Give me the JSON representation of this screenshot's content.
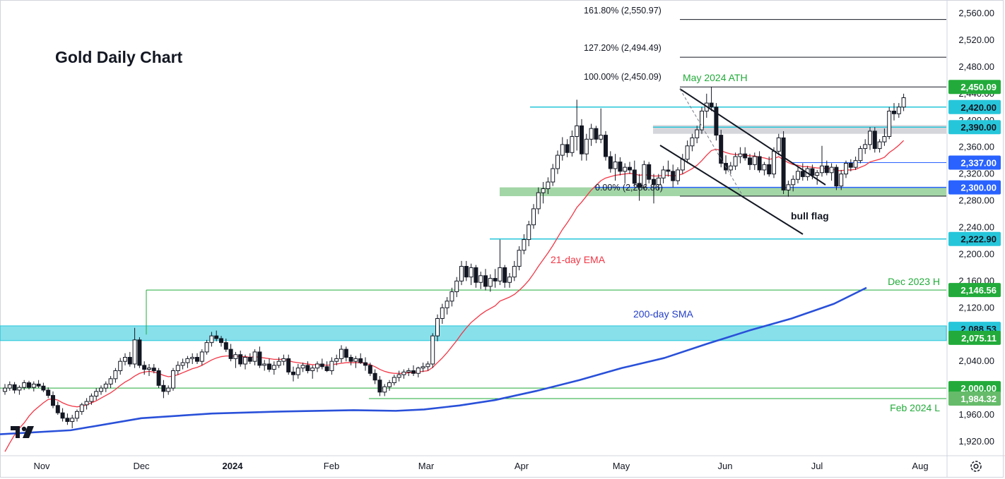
{
  "chart_data": {
    "type": "candlestick",
    "title": "Gold Daily Chart",
    "x_ticks": [
      "Nov",
      "Dec",
      "2024",
      "Feb",
      "Mar",
      "Apr",
      "May",
      "Jun",
      "Jul",
      "Aug"
    ],
    "y_ticks": [
      "2,560.00",
      "2,520.00",
      "2,480.00",
      "2,440.00",
      "2,400.00",
      "2,360.00",
      "2,320.00",
      "2,280.00",
      "2,240.00",
      "2,200.00",
      "2,160.00",
      "2,120.00",
      "2,080.00",
      "2,040.00",
      "2,000.00",
      "1,960.00",
      "1,920.00"
    ],
    "ylim": [
      1897,
      2581
    ],
    "price_tags": [
      {
        "label": "2,450.09",
        "value": 2450.09,
        "color": "#22ab3a",
        "text_color": "#ffffff"
      },
      {
        "label": "2,420.00",
        "value": 2420.0,
        "color": "#26c6da",
        "text_color": "#131722"
      },
      {
        "label": "2,390.00",
        "value": 2390.0,
        "color": "#26c6da",
        "text_color": "#131722"
      },
      {
        "label": "2,337.00",
        "value": 2337.0,
        "color": "#2962ff",
        "text_color": "#ffffff"
      },
      {
        "label": "2,300.00",
        "value": 2300.0,
        "color": "#2962ff",
        "text_color": "#ffffff"
      },
      {
        "label": "2,222.90",
        "value": 2222.9,
        "color": "#26c6da",
        "text_color": "#131722"
      },
      {
        "label": "2,146.56",
        "value": 2146.56,
        "color": "#22ab3a",
        "text_color": "#ffffff"
      },
      {
        "label": "2,088.53",
        "value": 2088.53,
        "color": "#26c6da",
        "text_color": "#131722"
      },
      {
        "label": "2,075.11",
        "value": 2075.11,
        "color": "#22ab3a",
        "text_color": "#ffffff"
      },
      {
        "label": "2,000.00",
        "value": 2000.0,
        "color": "#22ab3a",
        "text_color": "#ffffff"
      },
      {
        "label": "1,984.32",
        "value": 1984.32,
        "color": "#66bb6a",
        "text_color": "#ffffff"
      }
    ],
    "fib_levels": [
      {
        "label": "161.80% (2,550.97)",
        "value": 2550.97
      },
      {
        "label": "127.20% (2,494.49)",
        "value": 2494.49
      },
      {
        "label": "100.00% (2,450.09)",
        "value": 2450.09
      },
      {
        "label": "0.00% (2,286.86)",
        "value": 2286.86
      }
    ],
    "annotations": {
      "ath": "May 2024 ATH",
      "bull_flag": "bull flag",
      "ema": "21-day EMA",
      "sma": "200-day SMA",
      "dec_high": "Dec 2023 H",
      "feb_low": "Feb 2024 L"
    },
    "candles": [
      [
        1995,
        2006,
        1990,
        2000
      ],
      [
        2000,
        2010,
        1996,
        2005
      ],
      [
        2005,
        2009,
        1992,
        1997
      ],
      [
        1997,
        2004,
        1990,
        2001
      ],
      [
        2001,
        2012,
        1997,
        2008
      ],
      [
        2008,
        2011,
        1998,
        2001
      ],
      [
        2001,
        2010,
        1995,
        2006
      ],
      [
        2006,
        2012,
        2000,
        2003
      ],
      [
        2003,
        2008,
        1994,
        1997
      ],
      [
        1997,
        2001,
        1985,
        1989
      ],
      [
        1989,
        1995,
        1970,
        1974
      ],
      [
        1974,
        1980,
        1960,
        1963
      ],
      [
        1963,
        1970,
        1950,
        1955
      ],
      [
        1955,
        1962,
        1945,
        1950
      ],
      [
        1950,
        1960,
        1940,
        1955
      ],
      [
        1955,
        1968,
        1950,
        1965
      ],
      [
        1965,
        1978,
        1960,
        1975
      ],
      [
        1975,
        1985,
        1968,
        1980
      ],
      [
        1980,
        1992,
        1975,
        1988
      ],
      [
        1988,
        2000,
        1982,
        1995
      ],
      [
        1995,
        2004,
        1990,
        2000
      ],
      [
        2000,
        2010,
        1994,
        2006
      ],
      [
        2006,
        2018,
        2000,
        2014
      ],
      [
        2014,
        2030,
        2008,
        2026
      ],
      [
        2026,
        2045,
        2020,
        2040
      ],
      [
        2040,
        2052,
        2034,
        2046
      ],
      [
        2046,
        2054,
        2032,
        2036
      ],
      [
        2036,
        2090,
        2030,
        2072
      ],
      [
        2072,
        2076,
        2030,
        2034
      ],
      [
        2034,
        2040,
        2020,
        2028
      ],
      [
        2028,
        2036,
        2018,
        2030
      ],
      [
        2030,
        2036,
        2022,
        2026
      ],
      [
        2026,
        2030,
        2000,
        2004
      ],
      [
        2004,
        2012,
        1985,
        1995
      ],
      [
        1995,
        2004,
        1990,
        2000
      ],
      [
        2000,
        2030,
        1996,
        2026
      ],
      [
        2026,
        2040,
        2020,
        2034
      ],
      [
        2034,
        2044,
        2028,
        2038
      ],
      [
        2038,
        2048,
        2030,
        2044
      ],
      [
        2044,
        2052,
        2036,
        2046
      ],
      [
        2046,
        2052,
        2036,
        2040
      ],
      [
        2040,
        2058,
        2034,
        2054
      ],
      [
        2054,
        2072,
        2050,
        2068
      ],
      [
        2068,
        2084,
        2062,
        2078
      ],
      [
        2078,
        2086,
        2070,
        2074
      ],
      [
        2074,
        2078,
        2062,
        2068
      ],
      [
        2068,
        2074,
        2054,
        2058
      ],
      [
        2058,
        2066,
        2040,
        2044
      ],
      [
        2044,
        2054,
        2030,
        2050
      ],
      [
        2050,
        2056,
        2032,
        2036
      ],
      [
        2036,
        2050,
        2028,
        2046
      ],
      [
        2046,
        2052,
        2036,
        2040
      ],
      [
        2040,
        2058,
        2034,
        2054
      ],
      [
        2054,
        2062,
        2030,
        2034
      ],
      [
        2034,
        2042,
        2026,
        2036
      ],
      [
        2036,
        2044,
        2024,
        2028
      ],
      [
        2028,
        2040,
        2020,
        2034
      ],
      [
        2034,
        2046,
        2030,
        2040
      ],
      [
        2040,
        2050,
        2034,
        2044
      ],
      [
        2044,
        2050,
        2020,
        2024
      ],
      [
        2024,
        2032,
        2010,
        2020
      ],
      [
        2020,
        2036,
        2014,
        2030
      ],
      [
        2030,
        2038,
        2024,
        2034
      ],
      [
        2034,
        2040,
        2022,
        2026
      ],
      [
        2026,
        2034,
        2014,
        2030
      ],
      [
        2030,
        2040,
        2024,
        2036
      ],
      [
        2036,
        2044,
        2028,
        2032
      ],
      [
        2032,
        2040,
        2024,
        2026
      ],
      [
        2026,
        2046,
        2020,
        2040
      ],
      [
        2040,
        2050,
        2034,
        2044
      ],
      [
        2044,
        2064,
        2038,
        2058
      ],
      [
        2058,
        2062,
        2040,
        2046
      ],
      [
        2046,
        2050,
        2034,
        2040
      ],
      [
        2040,
        2048,
        2030,
        2044
      ],
      [
        2044,
        2052,
        2036,
        2038
      ],
      [
        2038,
        2046,
        2026,
        2034
      ],
      [
        2034,
        2038,
        2018,
        2022
      ],
      [
        2022,
        2028,
        2006,
        2012
      ],
      [
        2012,
        2018,
        1988,
        1994
      ],
      [
        1994,
        2006,
        1988,
        2002
      ],
      [
        2002,
        2012,
        1996,
        2008
      ],
      [
        2008,
        2020,
        2004,
        2016
      ],
      [
        2016,
        2026,
        2010,
        2020
      ],
      [
        2020,
        2028,
        2014,
        2024
      ],
      [
        2024,
        2030,
        2018,
        2026
      ],
      [
        2026,
        2034,
        2018,
        2022
      ],
      [
        2022,
        2032,
        2016,
        2030
      ],
      [
        2030,
        2038,
        2024,
        2032
      ],
      [
        2032,
        2040,
        2026,
        2036
      ],
      [
        2036,
        2082,
        2030,
        2078
      ],
      [
        2078,
        2110,
        2070,
        2104
      ],
      [
        2104,
        2126,
        2096,
        2120
      ],
      [
        2120,
        2136,
        2110,
        2130
      ],
      [
        2130,
        2150,
        2122,
        2144
      ],
      [
        2144,
        2166,
        2136,
        2160
      ],
      [
        2160,
        2190,
        2154,
        2182
      ],
      [
        2182,
        2190,
        2160,
        2166
      ],
      [
        2166,
        2186,
        2154,
        2180
      ],
      [
        2180,
        2184,
        2150,
        2158
      ],
      [
        2158,
        2174,
        2148,
        2168
      ],
      [
        2168,
        2178,
        2146,
        2152
      ],
      [
        2152,
        2170,
        2144,
        2164
      ],
      [
        2164,
        2178,
        2150,
        2160
      ],
      [
        2160,
        2222,
        2154,
        2180
      ],
      [
        2180,
        2184,
        2150,
        2158
      ],
      [
        2158,
        2172,
        2150,
        2166
      ],
      [
        2166,
        2190,
        2160,
        2182
      ],
      [
        2182,
        2212,
        2176,
        2206
      ],
      [
        2206,
        2230,
        2200,
        2222
      ],
      [
        2222,
        2250,
        2212,
        2244
      ],
      [
        2244,
        2275,
        2238,
        2268
      ],
      [
        2268,
        2300,
        2260,
        2292
      ],
      [
        2292,
        2308,
        2276,
        2298
      ],
      [
        2298,
        2315,
        2290,
        2308
      ],
      [
        2308,
        2335,
        2302,
        2328
      ],
      [
        2328,
        2355,
        2320,
        2348
      ],
      [
        2348,
        2375,
        2340,
        2364
      ],
      [
        2364,
        2372,
        2345,
        2352
      ],
      [
        2352,
        2385,
        2346,
        2376
      ],
      [
        2376,
        2431,
        2355,
        2392
      ],
      [
        2392,
        2402,
        2340,
        2350
      ],
      [
        2350,
        2380,
        2340,
        2372
      ],
      [
        2372,
        2395,
        2362,
        2388
      ],
      [
        2388,
        2392,
        2366,
        2372
      ],
      [
        2372,
        2418,
        2366,
        2378
      ],
      [
        2378,
        2384,
        2340,
        2346
      ],
      [
        2346,
        2354,
        2322,
        2328
      ],
      [
        2328,
        2350,
        2310,
        2338
      ],
      [
        2338,
        2345,
        2318,
        2324
      ],
      [
        2324,
        2336,
        2306,
        2330
      ],
      [
        2330,
        2338,
        2320,
        2326
      ],
      [
        2326,
        2340,
        2300,
        2306
      ],
      [
        2306,
        2320,
        2280,
        2300
      ],
      [
        2300,
        2340,
        2296,
        2334
      ],
      [
        2334,
        2338,
        2306,
        2312
      ],
      [
        2312,
        2320,
        2276,
        2304
      ],
      [
        2304,
        2320,
        2296,
        2314
      ],
      [
        2314,
        2332,
        2306,
        2326
      ],
      [
        2326,
        2340,
        2316,
        2324
      ],
      [
        2324,
        2334,
        2300,
        2310
      ],
      [
        2310,
        2330,
        2304,
        2326
      ],
      [
        2326,
        2350,
        2320,
        2342
      ],
      [
        2342,
        2370,
        2336,
        2362
      ],
      [
        2362,
        2380,
        2354,
        2374
      ],
      [
        2374,
        2392,
        2366,
        2386
      ],
      [
        2386,
        2420,
        2380,
        2414
      ],
      [
        2414,
        2440,
        2404,
        2426
      ],
      [
        2426,
        2450,
        2414,
        2420
      ],
      [
        2420,
        2426,
        2370,
        2378
      ],
      [
        2378,
        2386,
        2330,
        2336
      ],
      [
        2336,
        2348,
        2320,
        2326
      ],
      [
        2326,
        2338,
        2320,
        2332
      ],
      [
        2332,
        2352,
        2326,
        2346
      ],
      [
        2346,
        2360,
        2336,
        2350
      ],
      [
        2350,
        2360,
        2340,
        2344
      ],
      [
        2344,
        2350,
        2326,
        2334
      ],
      [
        2334,
        2352,
        2326,
        2346
      ],
      [
        2346,
        2354,
        2322,
        2326
      ],
      [
        2326,
        2338,
        2318,
        2334
      ],
      [
        2334,
        2346,
        2316,
        2320
      ],
      [
        2320,
        2360,
        2314,
        2354
      ],
      [
        2354,
        2380,
        2348,
        2374
      ],
      [
        2374,
        2384,
        2290,
        2296
      ],
      [
        2296,
        2310,
        2286,
        2304
      ],
      [
        2304,
        2318,
        2294,
        2312
      ],
      [
        2312,
        2330,
        2306,
        2324
      ],
      [
        2324,
        2336,
        2310,
        2316
      ],
      [
        2316,
        2332,
        2310,
        2328
      ],
      [
        2328,
        2334,
        2312,
        2318
      ],
      [
        2318,
        2326,
        2304,
        2322
      ],
      [
        2322,
        2362,
        2316,
        2332
      ],
      [
        2332,
        2340,
        2318,
        2322
      ],
      [
        2322,
        2336,
        2310,
        2330
      ],
      [
        2330,
        2334,
        2296,
        2302
      ],
      [
        2302,
        2326,
        2296,
        2320
      ],
      [
        2320,
        2340,
        2314,
        2336
      ],
      [
        2336,
        2342,
        2324,
        2330
      ],
      [
        2330,
        2346,
        2326,
        2340
      ],
      [
        2340,
        2362,
        2336,
        2358
      ],
      [
        2358,
        2372,
        2350,
        2364
      ],
      [
        2364,
        2390,
        2356,
        2384
      ],
      [
        2384,
        2390,
        2352,
        2358
      ],
      [
        2358,
        2372,
        2352,
        2368
      ],
      [
        2368,
        2388,
        2362,
        2376
      ],
      [
        2376,
        2420,
        2372,
        2414
      ],
      [
        2414,
        2426,
        2400,
        2410
      ],
      [
        2410,
        2426,
        2404,
        2420
      ],
      [
        2420,
        2440,
        2414,
        2434
      ]
    ],
    "ema_21": [
      1905,
      1918,
      1930,
      1940,
      1948,
      1958,
      1966,
      1972,
      1978,
      1983,
      1984,
      1982,
      1978,
      1975,
      1973,
      1972,
      1973,
      1975,
      1978,
      1981,
      1985,
      1989,
      1993,
      1998,
      2004,
      2009,
      2013,
      2018,
      2022,
      2024,
      2025,
      2024,
      2022,
      2019,
      2017,
      2018,
      2020,
      2023,
      2026,
      2029,
      2031,
      2034,
      2038,
      2042,
      2045,
      2047,
      2048,
      2048,
      2048,
      2047,
      2047,
      2046,
      2047,
      2046,
      2045,
      2044,
      2043,
      2043,
      2043,
      2041,
      2039,
      2038,
      2037,
      2036,
      2035,
      2035,
      2035,
      2034,
      2035,
      2036,
      2037,
      2038,
      2038,
      2038,
      2038,
      2037,
      2035,
      2032,
      2028,
      2025,
      2023,
      2022,
      2022,
      2022,
      2023,
      2023,
      2024,
      2025,
      2026,
      2031,
      2038,
      2045,
      2053,
      2062,
      2071,
      2081,
      2090,
      2098,
      2104,
      2110,
      2115,
      2119,
      2123,
      2130,
      2133,
      2136,
      2140,
      2146,
      2153,
      2161,
      2171,
      2182,
      2192,
      2202,
      2213,
      2225,
      2237,
      2247,
      2258,
      2270,
      2278,
      2287,
      2296,
      2303,
      2310,
      2314,
      2316,
      2318,
      2319,
      2320,
      2321,
      2320,
      2318,
      2319,
      2318,
      2317,
      2317,
      2318,
      2318,
      2317,
      2318,
      2320,
      2324,
      2328,
      2333,
      2340,
      2348,
      2355,
      2357,
      2355,
      2352,
      2350,
      2349,
      2349,
      2348,
      2347,
      2347,
      2345,
      2344,
      2342,
      2343,
      2346,
      2341,
      2337,
      2334,
      2333,
      2331,
      2331,
      2330,
      2329,
      2329,
      2328,
      2328,
      2325,
      2325,
      2326,
      2326,
      2327,
      2330,
      2333,
      2338,
      2340,
      2342,
      2345,
      2352,
      2357,
      2363,
      2370
    ]
  }
}
